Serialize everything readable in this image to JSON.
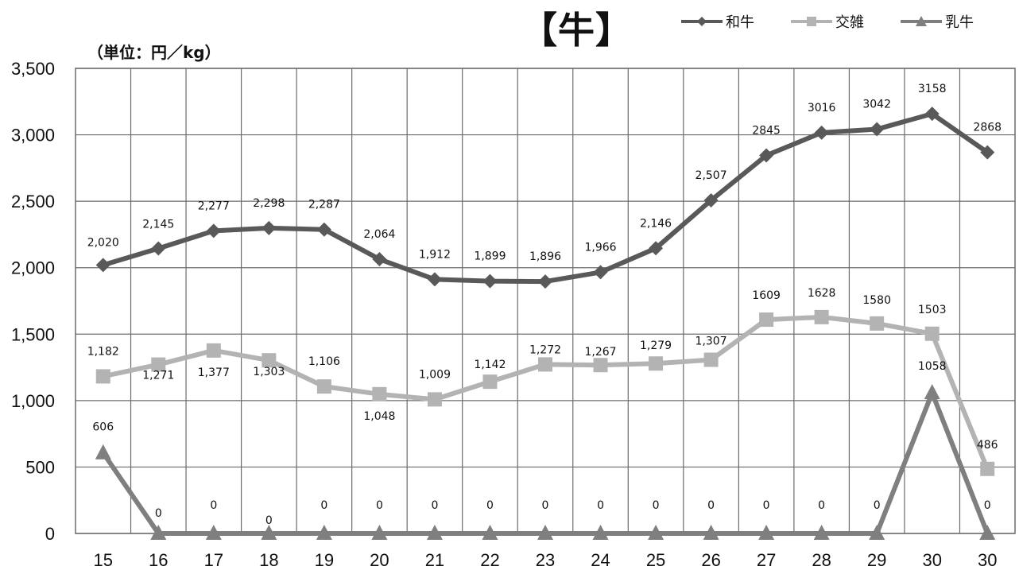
{
  "title": "【牛】",
  "unit_label": "（単位：円／kg）",
  "colors": {
    "wagyu": "#595959",
    "kosatsu": "#b3b3b3",
    "nyugyu": "#7f7f7f",
    "grid": "#6b6b6b"
  },
  "legend": [
    {
      "label": "和牛",
      "marker": "diamond",
      "color": "#595959"
    },
    {
      "label": "交雑",
      "marker": "square",
      "color": "#b3b3b3"
    },
    {
      "label": "乳牛",
      "marker": "triangle",
      "color": "#7f7f7f"
    }
  ],
  "chart_data": {
    "type": "line",
    "title": "【牛】",
    "ylabel": "（単位：円／kg）",
    "xlabel": "",
    "categories": [
      "15",
      "16",
      "17",
      "18",
      "19",
      "20",
      "21",
      "22",
      "23",
      "24",
      "25",
      "26",
      "27",
      "28",
      "29",
      "30",
      "30"
    ],
    "ylim": [
      0,
      3500
    ],
    "yticks": [
      0,
      500,
      1000,
      1500,
      2000,
      2500,
      3000,
      3500
    ],
    "ytick_labels": [
      "0",
      "500",
      "1,000",
      "1,500",
      "2,000",
      "2,500",
      "3,000",
      "3,500"
    ],
    "grid": true,
    "legend_position": "top-right",
    "series": [
      {
        "name": "和牛",
        "marker": "diamond",
        "color": "#595959",
        "values": [
          2020,
          2145,
          2277,
          2298,
          2287,
          2064,
          1912,
          1899,
          1896,
          1966,
          2146,
          2507,
          2845,
          3016,
          3042,
          3158,
          2868
        ],
        "labels": [
          "2,020",
          "2,145",
          "2,277",
          "2,298",
          "2,287",
          "2,064",
          "1,912",
          "1,899",
          "1,896",
          "1,966",
          "2,146",
          "2,507",
          "2845",
          "3016",
          "3042",
          "3158",
          "2868"
        ]
      },
      {
        "name": "交雑",
        "marker": "square",
        "color": "#b3b3b3",
        "values": [
          1182,
          1271,
          1377,
          1303,
          1106,
          1048,
          1009,
          1142,
          1272,
          1267,
          1279,
          1307,
          1609,
          1628,
          1580,
          1503,
          486
        ],
        "labels": [
          "1,182",
          "1,271",
          "1,377",
          "1,303",
          "1,106",
          "1,048",
          "1,009",
          "1,142",
          "1,272",
          "1,267",
          "1,279",
          "1,307",
          "1609",
          "1628",
          "1580",
          "1503",
          "486"
        ]
      },
      {
        "name": "乳牛",
        "marker": "triangle",
        "color": "#7f7f7f",
        "values": [
          606,
          0,
          0,
          0,
          0,
          0,
          0,
          0,
          0,
          0,
          0,
          0,
          0,
          0,
          0,
          1058,
          0
        ],
        "labels": [
          "606",
          "0",
          "0",
          "0",
          "0",
          "0",
          "0",
          "0",
          "0",
          "0",
          "0",
          "0",
          "0",
          "0",
          "0",
          "1058",
          "0"
        ]
      }
    ]
  }
}
